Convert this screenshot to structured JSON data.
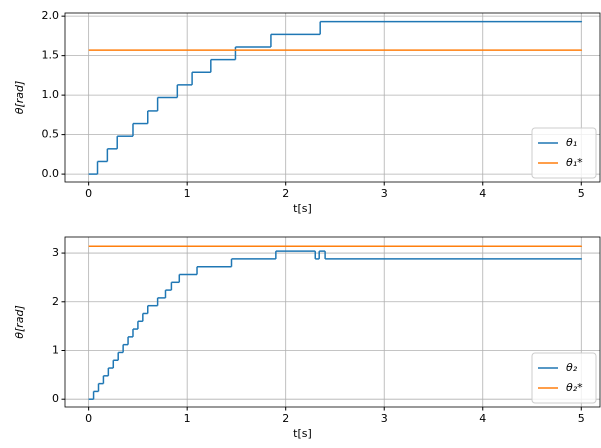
{
  "chart_data": [
    {
      "type": "line",
      "step": "post",
      "xlabel": "t[s]",
      "ylabel": "θ[rad]",
      "xlim": [
        -0.24,
        5.19
      ],
      "xticks": [
        0,
        1,
        2,
        3,
        4,
        5
      ],
      "ylim": [
        -0.1,
        2.04
      ],
      "yticks": [
        {
          "value": 0,
          "label": "0.0"
        },
        {
          "value": 0.5,
          "label": "0.5"
        },
        {
          "value": 1,
          "label": "1.0"
        },
        {
          "value": 1.5,
          "label": "1.5"
        },
        {
          "value": 2,
          "label": "2.0"
        }
      ],
      "grid": true,
      "legend": "lower right",
      "series": [
        {
          "name": "θ₁",
          "color": "#1f77b4",
          "x": [
            0,
            0.09,
            0.19,
            0.29,
            0.45,
            0.6,
            0.7,
            0.9,
            1.05,
            1.24,
            1.49,
            1.85,
            2.35,
            5
          ],
          "values": [
            0,
            0.16,
            0.32,
            0.48,
            0.64,
            0.8,
            0.97,
            1.13,
            1.29,
            1.45,
            1.61,
            1.77,
            1.93,
            1.93
          ]
        },
        {
          "name": "θ₁*",
          "color": "#ff7f0e",
          "x": [
            0,
            5
          ],
          "values": [
            1.57,
            1.57
          ]
        }
      ]
    },
    {
      "type": "line",
      "step": "post",
      "xlabel": "t[s]",
      "ylabel": "θ[rad]",
      "xlim": [
        -0.24,
        5.19
      ],
      "xticks": [
        0,
        1,
        2,
        3,
        4,
        5
      ],
      "ylim": [
        -0.16,
        3.33
      ],
      "yticks": [
        0,
        1,
        2,
        3
      ],
      "grid": true,
      "legend": "lower right",
      "series": [
        {
          "name": "θ₂",
          "color": "#1f77b4",
          "x": [
            0,
            0.05,
            0.1,
            0.15,
            0.2,
            0.25,
            0.3,
            0.35,
            0.4,
            0.45,
            0.5,
            0.55,
            0.6,
            0.7,
            0.78,
            0.84,
            0.92,
            1.1,
            1.45,
            1.9,
            2.3,
            2.34,
            2.4,
            5
          ],
          "values": [
            0,
            0.16,
            0.32,
            0.48,
            0.64,
            0.8,
            0.96,
            1.12,
            1.28,
            1.44,
            1.6,
            1.76,
            1.92,
            2.08,
            2.24,
            2.4,
            2.56,
            2.72,
            2.88,
            3.04,
            2.88,
            3.04,
            2.88,
            2.88
          ]
        },
        {
          "name": "θ₂*",
          "color": "#ff7f0e",
          "x": [
            0,
            5
          ],
          "values": [
            3.14,
            3.14
          ]
        }
      ]
    }
  ]
}
